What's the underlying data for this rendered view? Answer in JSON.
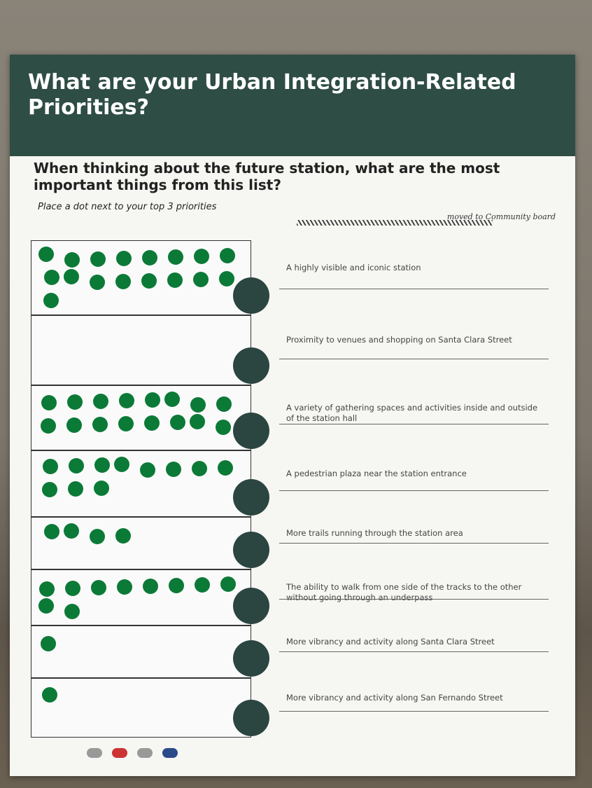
{
  "header": {
    "title": "What are your Urban Integration-Related Priorities?"
  },
  "question": "When thinking about the future station, what are the most important things from this list?",
  "instruction": "Place a dot next to your top 3 priorities",
  "handwritten_note": "moved to Community board",
  "items": [
    {
      "label": "A highly visible and iconic station",
      "dots": 17
    },
    {
      "label": "Proximity to venues and shopping on Santa Clara Street",
      "dots": 0
    },
    {
      "label": "A variety of gathering spaces and activities inside and outside of the station hall",
      "dots": 16
    },
    {
      "label": "A pedestrian plaza near the station entrance",
      "dots": 11
    },
    {
      "label": "More trails running through the station area",
      "dots": 4
    },
    {
      "label": "The ability to walk from one side of the tracks to the other without going through an underpass",
      "dots": 10
    },
    {
      "label": "More vibrancy and activity along Santa Clara Street",
      "dots": 1
    },
    {
      "label": "More vibrancy and activity along San Fernando Street",
      "dots": 1
    }
  ]
}
